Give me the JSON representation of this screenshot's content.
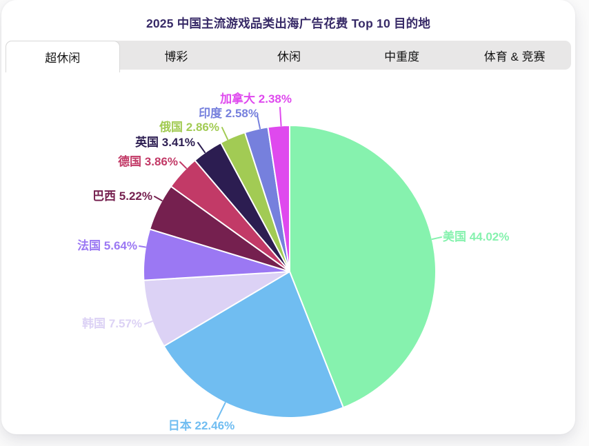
{
  "tabs": {
    "active_index": 0,
    "items": [
      {
        "key": "hyper-casual",
        "label": "超休闲"
      },
      {
        "key": "gambling",
        "label": "博彩"
      },
      {
        "key": "casual",
        "label": "休闲"
      },
      {
        "key": "mid-hardcore",
        "label": "中重度"
      },
      {
        "key": "sports-racing",
        "label": "体育 & 竞赛"
      }
    ]
  },
  "chart_data": {
    "type": "pie",
    "title": "2025 中国主流游戏品类出海广告花费 Top 10 目的地",
    "title_color": "#372a67",
    "label_format": "{name} {value}%",
    "legend": "none",
    "slice_border_color": "#ffffff",
    "series": [
      {
        "key": "usa",
        "name": "美国",
        "value": 44.02,
        "color": "#86f2ae"
      },
      {
        "key": "japan",
        "name": "日本",
        "value": 22.46,
        "color": "#70bdf1"
      },
      {
        "key": "korea",
        "name": "韩国",
        "value": 7.57,
        "color": "#dcd2f5"
      },
      {
        "key": "france",
        "name": "法国",
        "value": 5.64,
        "color": "#9b78f3"
      },
      {
        "key": "brazil",
        "name": "巴西",
        "value": 5.22,
        "color": "#75204f"
      },
      {
        "key": "germany",
        "name": "德国",
        "value": 3.86,
        "color": "#c23a67"
      },
      {
        "key": "uk",
        "name": "英国",
        "value": 3.41,
        "color": "#2c1d51"
      },
      {
        "key": "russia",
        "name": "俄国",
        "value": 2.86,
        "color": "#a2cb54"
      },
      {
        "key": "india",
        "name": "印度",
        "value": 2.58,
        "color": "#7680dd"
      },
      {
        "key": "canada",
        "name": "加拿大",
        "value": 2.38,
        "color": "#df49ee"
      }
    ]
  }
}
